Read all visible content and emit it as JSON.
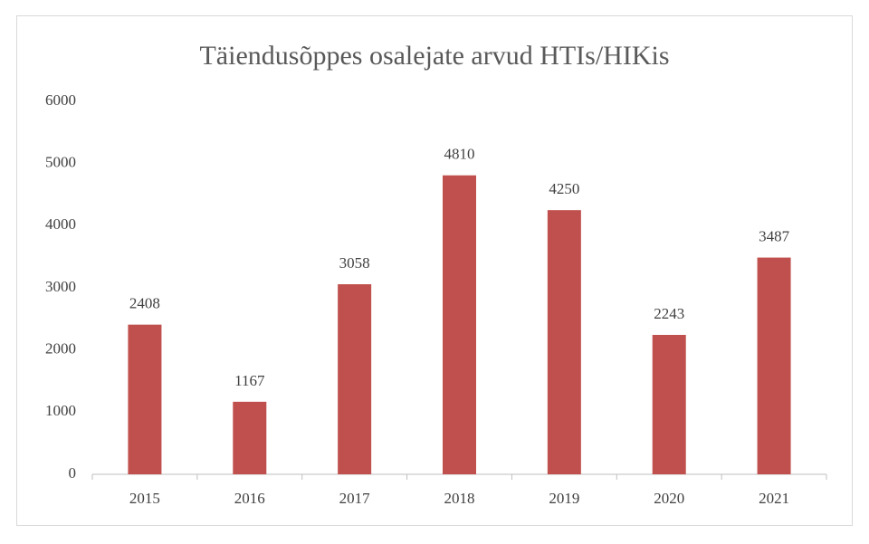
{
  "chart_data": {
    "type": "bar",
    "title": "Täiendusõppes osalejate arvud HTIs/HIKis",
    "categories": [
      "2015",
      "2016",
      "2017",
      "2018",
      "2019",
      "2020",
      "2021"
    ],
    "values": [
      2408,
      1167,
      3058,
      4810,
      4250,
      2243,
      3487
    ],
    "color": "#c0504d",
    "ylim": [
      0,
      6000
    ],
    "yticks": [
      0,
      1000,
      2000,
      3000,
      4000,
      5000,
      6000
    ],
    "grid": false
  }
}
